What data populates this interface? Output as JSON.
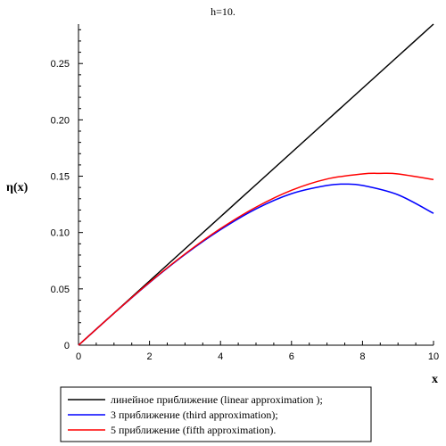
{
  "chart_data": {
    "type": "line",
    "title": "h=10.",
    "xlabel": "x",
    "ylabel": "η(x)",
    "xlim": [
      0,
      10
    ],
    "ylim": [
      0,
      0.285
    ],
    "x_ticks": [
      0,
      2,
      4,
      6,
      8,
      10
    ],
    "x_tick_labels": [
      "0",
      "2",
      "4",
      "6",
      "8",
      "10"
    ],
    "y_ticks": [
      0,
      0.05,
      0.1,
      0.15,
      0.2,
      0.25
    ],
    "y_tick_labels": [
      "0",
      "0.05",
      "0.10",
      "0.15",
      "0.20",
      "0.25"
    ],
    "grid": false,
    "legend_position": "bottom",
    "series": [
      {
        "name": "линейное приближение (linear approximation );",
        "color": "#000000",
        "x": [
          0,
          1,
          2,
          3,
          4,
          5,
          6,
          7,
          8,
          9,
          10
        ],
        "y": [
          0,
          0.0285,
          0.057,
          0.0855,
          0.114,
          0.1425,
          0.171,
          0.1995,
          0.228,
          0.2565,
          0.285
        ]
      },
      {
        "name": "3 приближение (third approximation);",
        "color": "#0000ff",
        "x": [
          0,
          1,
          2,
          3,
          4,
          5,
          6,
          7,
          7.5,
          8,
          9,
          10
        ],
        "y": [
          0,
          0.0283,
          0.0555,
          0.0805,
          0.1025,
          0.121,
          0.1345,
          0.1418,
          0.143,
          0.1418,
          0.1335,
          0.117
        ]
      },
      {
        "name": "5 приближение (fifth approximation).",
        "color": "#ff0000",
        "x": [
          0,
          1,
          2,
          3,
          4,
          5,
          6,
          7,
          8,
          8.5,
          9,
          10
        ],
        "y": [
          0,
          0.0284,
          0.0558,
          0.081,
          0.1035,
          0.1225,
          0.1375,
          0.1475,
          0.152,
          0.1525,
          0.152,
          0.147
        ]
      }
    ]
  }
}
